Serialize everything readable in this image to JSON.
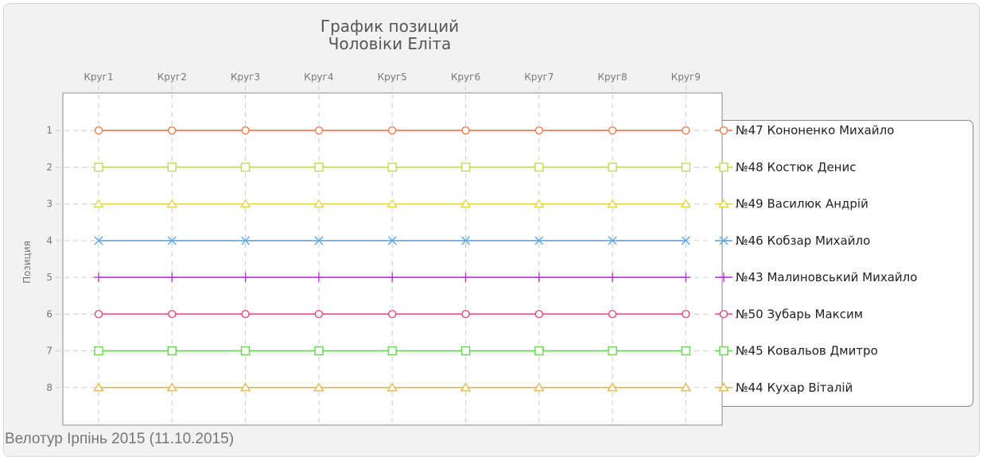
{
  "chart_data": {
    "type": "line",
    "title": "График позиций",
    "subtitle": "Чоловіки Еліта",
    "ylabel": "Позиция",
    "xlabel": "",
    "categories": [
      "Круг1",
      "Круг2",
      "Круг3",
      "Круг4",
      "Круг5",
      "Круг6",
      "Круг7",
      "Круг8",
      "Круг9"
    ],
    "ylim": [
      0,
      9
    ],
    "y_ticks": [
      1,
      2,
      3,
      4,
      5,
      6,
      7,
      8
    ],
    "y_reversed": true,
    "x_axis_position": "top",
    "grid": true,
    "legend_position": "right",
    "footer": "Велотур Ірпінь 2015 (11.10.2015)",
    "series": [
      {
        "name": "№47 Кононенко Михайло",
        "values": [
          1,
          1,
          1,
          1,
          1,
          1,
          1,
          1,
          1
        ],
        "color": "#f07a50",
        "marker": "circle"
      },
      {
        "name": "№48 Костюк Денис",
        "values": [
          2,
          2,
          2,
          2,
          2,
          2,
          2,
          2,
          2
        ],
        "color": "#c4d94a",
        "marker": "square"
      },
      {
        "name": "№49 Василюк Андрій",
        "values": [
          3,
          3,
          3,
          3,
          3,
          3,
          3,
          3,
          3
        ],
        "color": "#e3d44e",
        "marker": "triangle"
      },
      {
        "name": "№46 Кобзар Михайло",
        "values": [
          4,
          4,
          4,
          4,
          4,
          4,
          4,
          4,
          4
        ],
        "color": "#5aa8e6",
        "marker": "cross"
      },
      {
        "name": "№43 Малиновський Михайло",
        "values": [
          5,
          5,
          5,
          5,
          5,
          5,
          5,
          5,
          5
        ],
        "color": "#b23bd6",
        "marker": "plus"
      },
      {
        "name": "№50 Зубарь Максим",
        "values": [
          6,
          6,
          6,
          6,
          6,
          6,
          6,
          6,
          6
        ],
        "color": "#e8467c",
        "marker": "circle"
      },
      {
        "name": "№45 Ковальов Дмитро",
        "values": [
          7,
          7,
          7,
          7,
          7,
          7,
          7,
          7,
          7
        ],
        "color": "#5fd94a",
        "marker": "square"
      },
      {
        "name": "№44 Кухар Віталій",
        "values": [
          8,
          8,
          8,
          8,
          8,
          8,
          8,
          8,
          8
        ],
        "color": "#e8b64e",
        "marker": "triangle"
      }
    ]
  }
}
